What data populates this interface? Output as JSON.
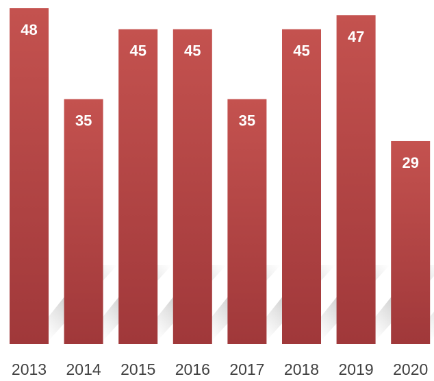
{
  "chart_data": {
    "type": "bar",
    "categories": [
      "2013",
      "2014",
      "2015",
      "2016",
      "2017",
      "2018",
      "2019",
      "2020"
    ],
    "values": [
      48,
      35,
      45,
      45,
      35,
      45,
      47,
      29
    ],
    "color": "#c0504d"
  }
}
